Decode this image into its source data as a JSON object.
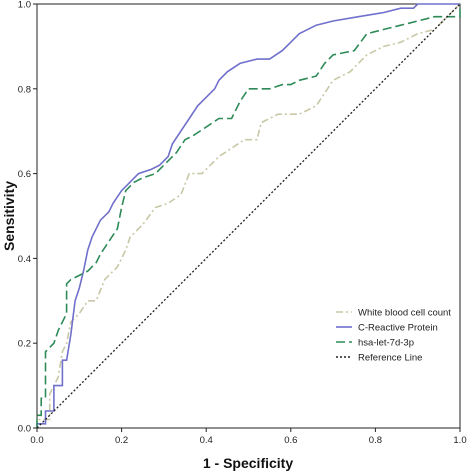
{
  "chart_data": {
    "type": "line",
    "title": "",
    "xlabel": "1 - Specificity",
    "ylabel": "Sensitivity",
    "xlim": [
      0,
      1
    ],
    "ylim": [
      0,
      1
    ],
    "xticks": [
      "0.0",
      "0.2",
      "0.4",
      "0.6",
      "0.8",
      "1.0"
    ],
    "yticks": [
      "0.0",
      "0.2",
      "0.4",
      "0.6",
      "0.8",
      "1.0"
    ],
    "grid": false,
    "legend_position": "bottom-right",
    "series": [
      {
        "name": "White blood cell count",
        "color": "#c9c8a6",
        "dash": "7,3,2,3",
        "points": [
          [
            0,
            0
          ],
          [
            0,
            0.02
          ],
          [
            0.03,
            0.02
          ],
          [
            0.03,
            0.08
          ],
          [
            0.05,
            0.12
          ],
          [
            0.06,
            0.18
          ],
          [
            0.07,
            0.2
          ],
          [
            0.08,
            0.25
          ],
          [
            0.1,
            0.27
          ],
          [
            0.12,
            0.3
          ],
          [
            0.14,
            0.3
          ],
          [
            0.16,
            0.35
          ],
          [
            0.19,
            0.38
          ],
          [
            0.21,
            0.42
          ],
          [
            0.22,
            0.45
          ],
          [
            0.25,
            0.48
          ],
          [
            0.28,
            0.52
          ],
          [
            0.31,
            0.53
          ],
          [
            0.34,
            0.55
          ],
          [
            0.36,
            0.6
          ],
          [
            0.39,
            0.6
          ],
          [
            0.41,
            0.62
          ],
          [
            0.43,
            0.64
          ],
          [
            0.46,
            0.66
          ],
          [
            0.49,
            0.68
          ],
          [
            0.52,
            0.68
          ],
          [
            0.53,
            0.72
          ],
          [
            0.57,
            0.74
          ],
          [
            0.62,
            0.74
          ],
          [
            0.66,
            0.76
          ],
          [
            0.7,
            0.82
          ],
          [
            0.74,
            0.84
          ],
          [
            0.78,
            0.88
          ],
          [
            0.82,
            0.9
          ],
          [
            0.86,
            0.91
          ],
          [
            0.9,
            0.93
          ],
          [
            0.94,
            0.94
          ],
          [
            0.97,
            0.97
          ],
          [
            1,
            1
          ]
        ]
      },
      {
        "name": "C-Reactive Protein",
        "color": "#7070cc",
        "dash": "",
        "points": [
          [
            0,
            0
          ],
          [
            0,
            0.01
          ],
          [
            0.02,
            0.01
          ],
          [
            0.02,
            0.04
          ],
          [
            0.04,
            0.04
          ],
          [
            0.04,
            0.1
          ],
          [
            0.06,
            0.1
          ],
          [
            0.06,
            0.16
          ],
          [
            0.07,
            0.16
          ],
          [
            0.08,
            0.22
          ],
          [
            0.09,
            0.3
          ],
          [
            0.1,
            0.33
          ],
          [
            0.11,
            0.37
          ],
          [
            0.12,
            0.42
          ],
          [
            0.13,
            0.45
          ],
          [
            0.15,
            0.49
          ],
          [
            0.17,
            0.51
          ],
          [
            0.18,
            0.53
          ],
          [
            0.2,
            0.56
          ],
          [
            0.22,
            0.58
          ],
          [
            0.24,
            0.6
          ],
          [
            0.27,
            0.61
          ],
          [
            0.29,
            0.62
          ],
          [
            0.31,
            0.64
          ],
          [
            0.32,
            0.67
          ],
          [
            0.34,
            0.7
          ],
          [
            0.36,
            0.73
          ],
          [
            0.38,
            0.76
          ],
          [
            0.4,
            0.78
          ],
          [
            0.42,
            0.8
          ],
          [
            0.43,
            0.82
          ],
          [
            0.45,
            0.84
          ],
          [
            0.48,
            0.86
          ],
          [
            0.52,
            0.87
          ],
          [
            0.55,
            0.87
          ],
          [
            0.58,
            0.89
          ],
          [
            0.6,
            0.91
          ],
          [
            0.62,
            0.93
          ],
          [
            0.66,
            0.95
          ],
          [
            0.7,
            0.96
          ],
          [
            0.76,
            0.97
          ],
          [
            0.82,
            0.98
          ],
          [
            0.86,
            0.99
          ],
          [
            0.89,
            0.99
          ],
          [
            0.9,
            1.0
          ],
          [
            1,
            1
          ]
        ]
      },
      {
        "name": "hsa-let-7d-3p",
        "color": "#2e8b57",
        "dash": "9,4",
        "points": [
          [
            0,
            0
          ],
          [
            0,
            0.03
          ],
          [
            0.01,
            0.03
          ],
          [
            0.01,
            0.07
          ],
          [
            0.02,
            0.07
          ],
          [
            0.02,
            0.18
          ],
          [
            0.04,
            0.2
          ],
          [
            0.05,
            0.23
          ],
          [
            0.07,
            0.27
          ],
          [
            0.07,
            0.34
          ],
          [
            0.08,
            0.35
          ],
          [
            0.1,
            0.36
          ],
          [
            0.12,
            0.37
          ],
          [
            0.14,
            0.39
          ],
          [
            0.15,
            0.41
          ],
          [
            0.17,
            0.44
          ],
          [
            0.19,
            0.47
          ],
          [
            0.2,
            0.52
          ],
          [
            0.21,
            0.56
          ],
          [
            0.23,
            0.58
          ],
          [
            0.25,
            0.59
          ],
          [
            0.28,
            0.6
          ],
          [
            0.31,
            0.63
          ],
          [
            0.33,
            0.65
          ],
          [
            0.35,
            0.68
          ],
          [
            0.37,
            0.69
          ],
          [
            0.4,
            0.71
          ],
          [
            0.43,
            0.73
          ],
          [
            0.46,
            0.73
          ],
          [
            0.48,
            0.77
          ],
          [
            0.5,
            0.8
          ],
          [
            0.55,
            0.8
          ],
          [
            0.58,
            0.81
          ],
          [
            0.6,
            0.81
          ],
          [
            0.62,
            0.82
          ],
          [
            0.66,
            0.83
          ],
          [
            0.68,
            0.86
          ],
          [
            0.7,
            0.88
          ],
          [
            0.75,
            0.89
          ],
          [
            0.78,
            0.93
          ],
          [
            0.82,
            0.94
          ],
          [
            0.86,
            0.95
          ],
          [
            0.9,
            0.96
          ],
          [
            0.94,
            0.97
          ],
          [
            1,
            0.97
          ],
          [
            1,
            1
          ]
        ]
      },
      {
        "name": "Reference Line",
        "color": "#222222",
        "dash": "2,2",
        "points": [
          [
            0,
            0
          ],
          [
            1,
            1
          ]
        ]
      }
    ]
  }
}
